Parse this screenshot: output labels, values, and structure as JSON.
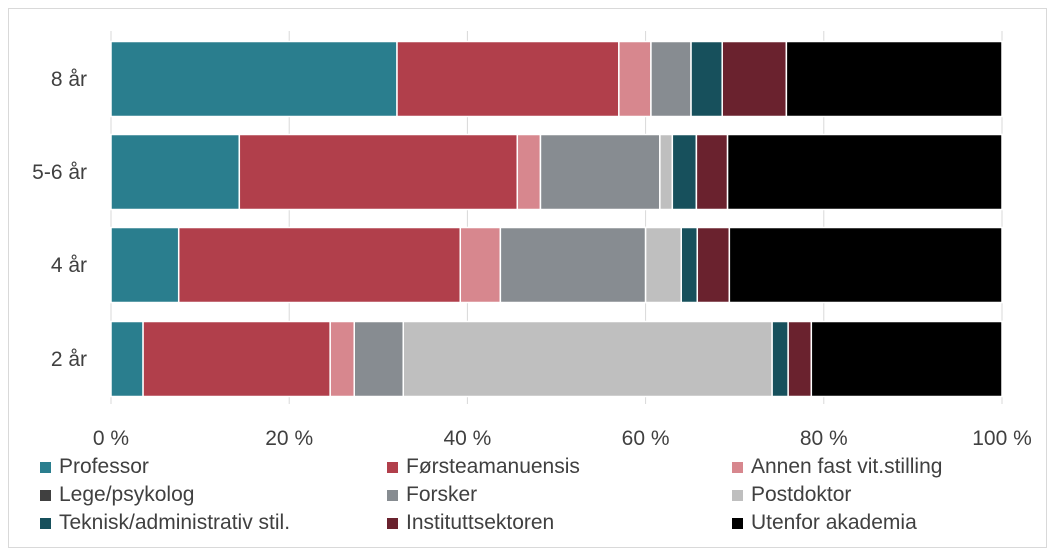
{
  "chart_data": {
    "type": "bar",
    "orientation": "horizontal",
    "stacked": "percent",
    "categories": [
      "8 år",
      "5-6 år",
      "4 år",
      "2 år"
    ],
    "series": [
      {
        "name": "Professor",
        "color": "#2a7e8e",
        "values": [
          32.1,
          14.4,
          7.6,
          3.6
        ]
      },
      {
        "name": "Førsteamanuensis",
        "color": "#b13f4b",
        "values": [
          24.9,
          31.2,
          31.6,
          21.0
        ]
      },
      {
        "name": "Annen fast vit.stilling",
        "color": "#d7878e",
        "values": [
          3.6,
          2.6,
          4.5,
          2.7
        ]
      },
      {
        "name": "Lege/psykolog",
        "color": "#404040",
        "values": [
          0,
          0,
          0,
          0
        ]
      },
      {
        "name": "Forsker",
        "color": "#878c91",
        "values": [
          4.5,
          13.4,
          16.3,
          5.5
        ]
      },
      {
        "name": "Postdoktor",
        "color": "#bfbfbf",
        "values": [
          0,
          1.4,
          4.0,
          41.4
        ]
      },
      {
        "name": "Teknisk/administrativ stil.",
        "color": "#17505c",
        "values": [
          3.5,
          2.7,
          1.8,
          1.8
        ]
      },
      {
        "name": "Instituttsektoren",
        "color": "#6a222e",
        "values": [
          7.2,
          3.5,
          3.6,
          2.6
        ]
      },
      {
        "name": "Utenfor akademia",
        "color": "#000000",
        "values": [
          24.2,
          30.8,
          30.6,
          21.4
        ]
      }
    ],
    "xticks": [
      "0 %",
      "20 %",
      "40 %",
      "60 %",
      "80 %",
      "100 %"
    ],
    "xlim": [
      0,
      100
    ],
    "grid": true,
    "legend_position": "bottom"
  }
}
